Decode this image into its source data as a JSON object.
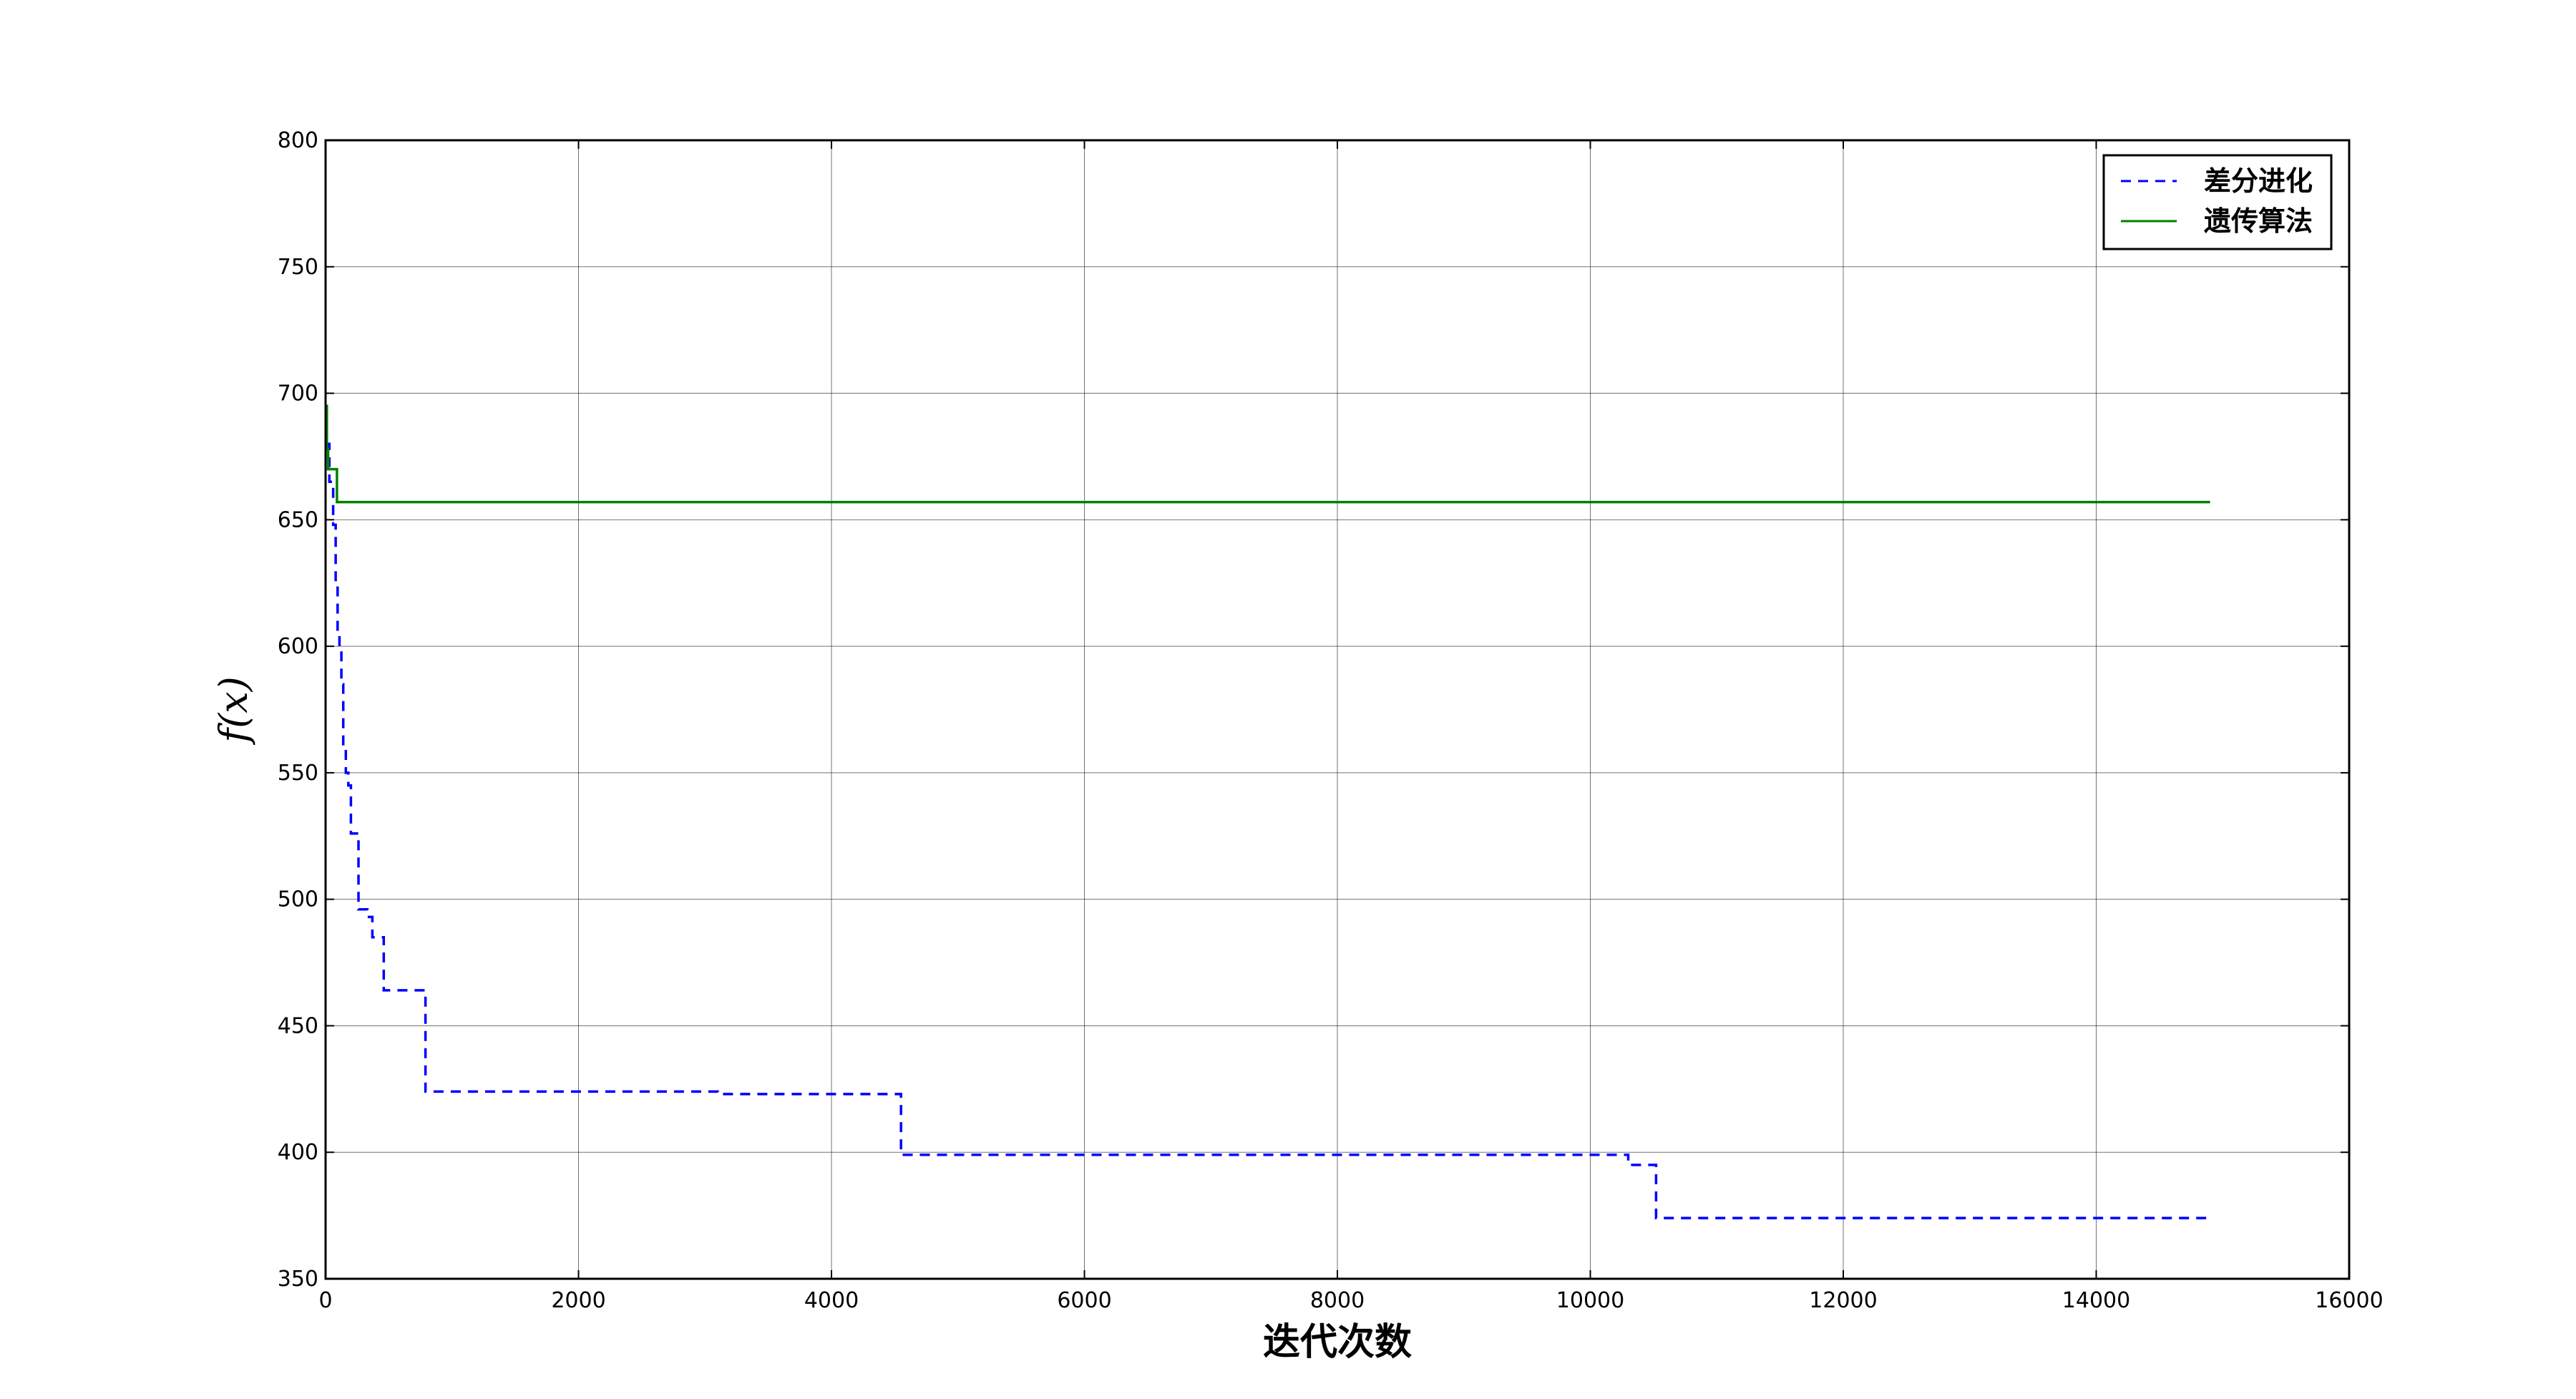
{
  "chart_data": {
    "type": "line",
    "title": "",
    "xlabel": "迭代次数",
    "ylabel": "f(x)",
    "xlim": [
      0,
      16000
    ],
    "ylim": [
      350,
      800
    ],
    "xticks": [
      0,
      2000,
      4000,
      6000,
      8000,
      10000,
      12000,
      14000,
      16000
    ],
    "yticks": [
      350,
      400,
      450,
      500,
      550,
      600,
      650,
      700,
      750,
      800
    ],
    "grid": true,
    "legend_position": "top-right",
    "series": [
      {
        "name": "差分进化",
        "color": "#0000ff",
        "line_style": "dashed",
        "points": [
          [
            0,
            680
          ],
          [
            30,
            680
          ],
          [
            30,
            665
          ],
          [
            60,
            665
          ],
          [
            60,
            648
          ],
          [
            80,
            648
          ],
          [
            80,
            625
          ],
          [
            95,
            625
          ],
          [
            95,
            605
          ],
          [
            110,
            605
          ],
          [
            110,
            600
          ],
          [
            125,
            600
          ],
          [
            125,
            585
          ],
          [
            140,
            585
          ],
          [
            140,
            560
          ],
          [
            160,
            560
          ],
          [
            160,
            550
          ],
          [
            180,
            550
          ],
          [
            180,
            545
          ],
          [
            200,
            545
          ],
          [
            200,
            526
          ],
          [
            260,
            526
          ],
          [
            260,
            496
          ],
          [
            330,
            496
          ],
          [
            330,
            493
          ],
          [
            370,
            493
          ],
          [
            370,
            485
          ],
          [
            460,
            485
          ],
          [
            460,
            464
          ],
          [
            790,
            464
          ],
          [
            790,
            424
          ],
          [
            3100,
            424
          ],
          [
            3100,
            423
          ],
          [
            4550,
            423
          ],
          [
            4550,
            399
          ],
          [
            10300,
            399
          ],
          [
            10300,
            395
          ],
          [
            10520,
            395
          ],
          [
            10520,
            374
          ],
          [
            14900,
            374
          ]
        ]
      },
      {
        "name": "遗传算法",
        "color": "#008000",
        "line_style": "solid",
        "points": [
          [
            0,
            695
          ],
          [
            10,
            695
          ],
          [
            10,
            678
          ],
          [
            20,
            678
          ],
          [
            20,
            670
          ],
          [
            90,
            670
          ],
          [
            90,
            657
          ],
          [
            14900,
            657
          ]
        ]
      }
    ]
  }
}
